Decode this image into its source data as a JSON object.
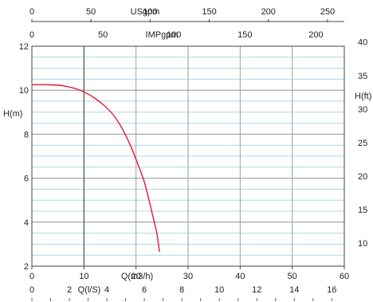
{
  "chart_data": {
    "type": "line",
    "title": "",
    "xlabel": "Q(m3/h)",
    "ylabel": "H(m)",
    "ylabel_right": "H(ft)",
    "xlim": [
      0,
      60
    ],
    "ylim": [
      2,
      12
    ],
    "grid": true,
    "secondary_axes": {
      "usgpm": {
        "label": "USgpm",
        "ticks": [
          "0",
          "50",
          "100",
          "150",
          "200",
          "250"
        ],
        "values": [
          0,
          50,
          100,
          150,
          200,
          250
        ]
      },
      "impgpm": {
        "label": "IMPgpm",
        "ticks": [
          "0",
          "50",
          "100",
          "150",
          "200"
        ],
        "values": [
          0,
          50,
          100,
          150,
          200
        ]
      },
      "ls": {
        "label": "Q(l/S)",
        "ticks": [
          "0",
          "2",
          "4",
          "6",
          "8",
          "10",
          "12",
          "14",
          "16"
        ],
        "values": [
          0,
          2,
          4,
          6,
          8,
          10,
          12,
          14,
          16
        ]
      },
      "hft": {
        "label": "H(ft)",
        "ticks": [
          "10",
          "15",
          "20",
          "25",
          "30",
          "35",
          "40"
        ],
        "values": [
          10,
          15,
          20,
          25,
          30,
          35,
          40
        ]
      }
    },
    "x_ticks": [
      "0",
      "10",
      "20",
      "30",
      "40",
      "50",
      "60"
    ],
    "y_ticks": [
      "2",
      "4",
      "6",
      "8",
      "10",
      "12"
    ],
    "series": [
      {
        "color": "#e8192c",
        "points": [
          [
            0,
            10.25
          ],
          [
            3,
            10.25
          ],
          [
            6,
            10.2
          ],
          [
            9,
            10.02
          ],
          [
            12,
            9.65
          ],
          [
            15,
            9.05
          ],
          [
            17,
            8.4
          ],
          [
            19,
            7.45
          ],
          [
            20,
            6.85
          ],
          [
            21.5,
            5.9
          ],
          [
            22.5,
            5.0
          ],
          [
            23.5,
            4.0
          ],
          [
            24,
            3.5
          ],
          [
            24.5,
            2.65
          ]
        ]
      }
    ]
  }
}
